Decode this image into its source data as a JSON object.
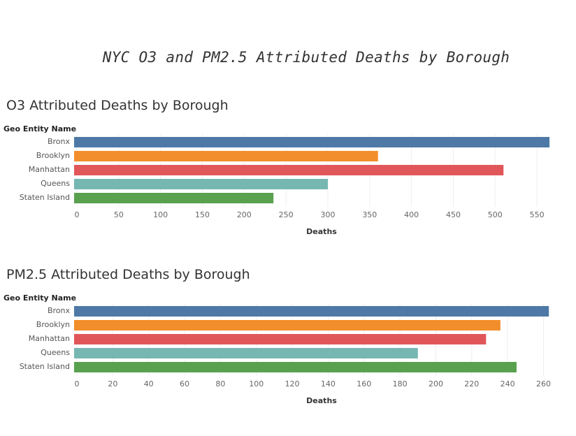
{
  "title": "NYC O3 and PM2.5 Attributed Deaths by Borough",
  "chart_data": [
    {
      "type": "bar",
      "orientation": "horizontal",
      "title": "O3 Attributed Deaths by Borough",
      "row_header": "Geo Entity Name",
      "xlabel": "Deaths",
      "categories": [
        "Bronx",
        "Brooklyn",
        "Manhattan",
        "Queens",
        "Staten Island"
      ],
      "values": [
        565,
        360,
        510,
        300,
        235
      ],
      "colors": [
        "#4e79a7",
        "#f28e2b",
        "#e15759",
        "#76b7b2",
        "#59a14f"
      ],
      "xticks": [
        0,
        50,
        100,
        150,
        200,
        250,
        300,
        350,
        400,
        450,
        500,
        550
      ],
      "xlim": [
        0,
        590
      ],
      "grid": true
    },
    {
      "type": "bar",
      "orientation": "horizontal",
      "title": "PM2.5 Attributed Deaths by Borough",
      "row_header": "Geo Entity Name",
      "xlabel": "Deaths",
      "categories": [
        "Bronx",
        "Brooklyn",
        "Manhattan",
        "Queens",
        "Staten Island"
      ],
      "values": [
        263,
        236,
        228,
        190,
        245
      ],
      "colors": [
        "#4e79a7",
        "#f28e2b",
        "#e15759",
        "#76b7b2",
        "#59a14f"
      ],
      "xticks": [
        0,
        20,
        40,
        60,
        80,
        100,
        120,
        140,
        160,
        180,
        200,
        220,
        240,
        260
      ],
      "xlim": [
        0,
        275
      ],
      "grid": true
    }
  ]
}
